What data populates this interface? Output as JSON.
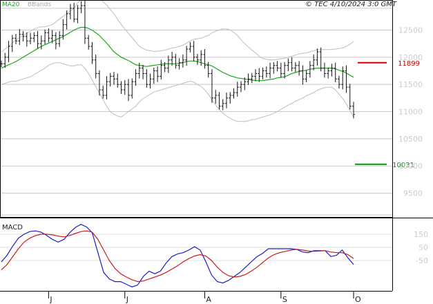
{
  "header": {
    "legend_ma": "MA20",
    "legend_bb": "BBands",
    "copyright": "© TEC 4/10/2024 3:0 GMT"
  },
  "chart_data": [
    {
      "type": "ohlc",
      "title": "",
      "y_ticks": [
        9500,
        10000,
        10500,
        11000,
        11500,
        12000,
        12500
      ],
      "y_tick_labels": [
        "9500",
        "10000",
        "10500",
        "11000",
        "11500",
        "12000",
        "12500"
      ],
      "ylim": [
        9050,
        12900
      ],
      "x_ticks": [
        {
          "label": "J",
          "index": 13
        },
        {
          "label": "J",
          "index": 34
        },
        {
          "label": "A",
          "index": 56
        },
        {
          "label": "S",
          "index": 77
        },
        {
          "label": "O",
          "index": 97
        }
      ],
      "closes": [
        11880,
        12000,
        12200,
        12350,
        12300,
        12420,
        12380,
        12300,
        12350,
        12400,
        12250,
        12300,
        12450,
        12350,
        12400,
        12250,
        12400,
        12600,
        12800,
        12900,
        12700,
        12900,
        12950,
        12350,
        12200,
        11950,
        11700,
        11400,
        11300,
        11550,
        11650,
        11600,
        11500,
        11400,
        11500,
        11300,
        11550,
        11700,
        11800,
        11700,
        11500,
        11600,
        11750,
        11650,
        11850,
        11800,
        11950,
        12000,
        11850,
        11900,
        11950,
        12150,
        12200,
        12000,
        11950,
        12050,
        11850,
        11700,
        11250,
        11300,
        11100,
        11150,
        11250,
        11300,
        11350,
        11450,
        11500,
        11550,
        11600,
        11650,
        11700,
        11650,
        11750,
        11700,
        11800,
        11850,
        11800,
        11700,
        11850,
        11900,
        11800,
        11850,
        11750,
        11600,
        11700,
        11850,
        11950,
        12100,
        11800,
        11700,
        11750,
        11800,
        11600,
        11500,
        11750,
        11450,
        11100,
        10950
      ],
      "ma20": [
        11800,
        11830,
        11860,
        11890,
        11920,
        11960,
        12000,
        12040,
        12080,
        12120,
        12160,
        12200,
        12230,
        12260,
        12290,
        12320,
        12350,
        12380,
        12420,
        12460,
        12500,
        12530,
        12550,
        12550,
        12530,
        12500,
        12450,
        12400,
        12330,
        12260,
        12180,
        12100,
        12050,
        12000,
        11970,
        11940,
        11900,
        11860,
        11850,
        11840,
        11830,
        11840,
        11850,
        11860,
        11870,
        11880,
        11880,
        11880,
        11880,
        11890,
        11900,
        11920,
        11930,
        11930,
        11920,
        11900,
        11880,
        11860,
        11840,
        11800,
        11760,
        11720,
        11690,
        11660,
        11640,
        11620,
        11610,
        11600,
        11590,
        11580,
        11570,
        11570,
        11570,
        11580,
        11590,
        11600,
        11620,
        11630,
        11640,
        11670,
        11700,
        11720,
        11740,
        11750,
        11760,
        11780,
        11790,
        11800,
        11800,
        11800,
        11800,
        11800,
        11790,
        11760,
        11740,
        11710,
        11670,
        11630
      ],
      "bb_upper": [
        12100,
        12150,
        12200,
        12260,
        12320,
        12360,
        12400,
        12440,
        12480,
        12520,
        12540,
        12560,
        12560,
        12580,
        12600,
        12650,
        12700,
        12750,
        12800,
        12850,
        12900,
        13000,
        13060,
        13100,
        13130,
        13150,
        13120,
        13080,
        13020,
        12960,
        12880,
        12800,
        12700,
        12600,
        12520,
        12440,
        12360,
        12280,
        12200,
        12160,
        12130,
        12120,
        12110,
        12110,
        12120,
        12130,
        12150,
        12170,
        12180,
        12200,
        12220,
        12260,
        12300,
        12330,
        12340,
        12350,
        12380,
        12400,
        12450,
        12480,
        12500,
        12520,
        12520,
        12500,
        12460,
        12400,
        12320,
        12250,
        12190,
        12130,
        12080,
        12020,
        11980,
        11960,
        11950,
        11950,
        11960,
        11970,
        11980,
        12000,
        12020,
        12040,
        12060,
        12070,
        12080,
        12100,
        12120,
        12140,
        12140,
        12140,
        12140,
        12140,
        12150,
        12160,
        12170,
        12200,
        12240,
        12290
      ],
      "bb_lower": [
        11500,
        11520,
        11540,
        11560,
        11560,
        11580,
        11600,
        11620,
        11640,
        11680,
        11720,
        11760,
        11800,
        11850,
        11880,
        11900,
        11900,
        11880,
        11860,
        11840,
        11840,
        11860,
        11860,
        11800,
        11700,
        11580,
        11460,
        11340,
        11220,
        11100,
        11000,
        10950,
        10920,
        10900,
        10950,
        11000,
        11050,
        11100,
        11180,
        11240,
        11280,
        11320,
        11360,
        11380,
        11400,
        11420,
        11440,
        11460,
        11480,
        11500,
        11520,
        11540,
        11560,
        11540,
        11500,
        11460,
        11400,
        11320,
        11220,
        11120,
        11040,
        10970,
        10920,
        10880,
        10840,
        10820,
        10820,
        10820,
        10830,
        10850,
        10860,
        10880,
        10900,
        10920,
        10940,
        10970,
        11000,
        11040,
        11080,
        11120,
        11150,
        11190,
        11220,
        11250,
        11290,
        11320,
        11350,
        11390,
        11420,
        11440,
        11450,
        11450,
        11400,
        11320,
        11240,
        11140,
        11020,
        10900
      ],
      "annotations": [
        {
          "label": "11899",
          "value": 11899,
          "color": "#cc0000"
        },
        {
          "label": "10031",
          "value": 10031,
          "color": "#009900"
        }
      ]
    },
    {
      "type": "line",
      "title": "MACD",
      "y_ticks": [
        -50,
        50,
        150
      ],
      "y_tick_labels": [
        "-50",
        "50",
        "150"
      ],
      "ylim": [
        -280,
        260
      ],
      "series": [
        {
          "color": "#1a1acc",
          "values": [
            -60,
            -10,
            60,
            120,
            150,
            170,
            175,
            165,
            140,
            110,
            90,
            110,
            160,
            200,
            225,
            205,
            160,
            10,
            -140,
            -190,
            -210,
            -210,
            -230,
            -250,
            -235,
            -170,
            -130,
            -150,
            -130,
            -70,
            -20,
            0,
            10,
            30,
            55,
            30,
            -60,
            -160,
            -210,
            -220,
            -200,
            -170,
            -140,
            -100,
            -60,
            -20,
            5,
            40,
            40,
            40,
            40,
            40,
            35,
            15,
            10,
            25,
            25,
            25,
            -20,
            -10,
            30,
            -30,
            -80
          ]
        },
        {
          "color": "#cc1a1a",
          "values": [
            -120,
            -80,
            -20,
            40,
            90,
            120,
            140,
            150,
            150,
            145,
            135,
            130,
            140,
            155,
            170,
            175,
            165,
            110,
            30,
            -50,
            -110,
            -150,
            -175,
            -195,
            -210,
            -205,
            -190,
            -175,
            -160,
            -140,
            -115,
            -90,
            -60,
            -35,
            -15,
            -5,
            -15,
            -50,
            -100,
            -140,
            -165,
            -175,
            -170,
            -155,
            -130,
            -100,
            -65,
            -30,
            -5,
            10,
            20,
            30,
            35,
            30,
            22,
            20,
            22,
            25,
            15,
            10,
            10,
            -5,
            -35
          ]
        }
      ]
    }
  ]
}
